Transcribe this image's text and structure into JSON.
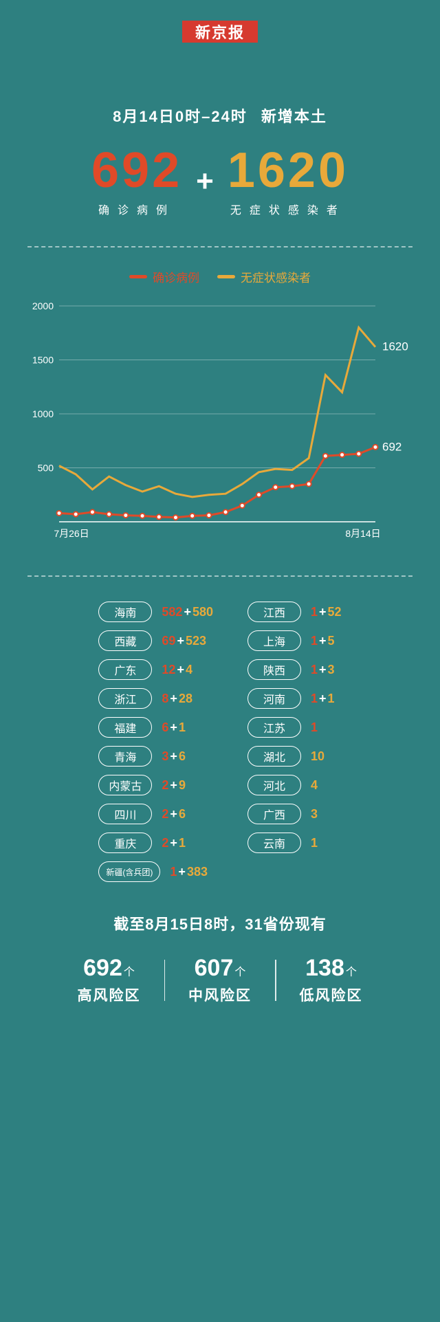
{
  "colors": {
    "background": "#2e8080",
    "red": "#e04a28",
    "yellow": "#e8a93a",
    "white": "#ffffff",
    "grid": "rgba(255,255,255,0.35)"
  },
  "logo": "新京报",
  "header": {
    "date_range": "8月14日0时–24时",
    "suffix": "新增本土"
  },
  "totals": {
    "confirmed": {
      "value": "692",
      "label": "确诊病例"
    },
    "asymptomatic": {
      "value": "1620",
      "label": "无症状感染者"
    },
    "plus": "+"
  },
  "legend": {
    "confirmed": "确诊病例",
    "asymptomatic": "无症状感染者"
  },
  "chart": {
    "type": "line",
    "ylim": [
      0,
      2000
    ],
    "yticks": [
      500,
      1000,
      1500,
      2000
    ],
    "x_start_label": "7月26日",
    "x_end_label": "8月14日",
    "n_points": 20,
    "series": {
      "confirmed": {
        "color": "#e04a28",
        "values": [
          80,
          70,
          90,
          70,
          60,
          55,
          45,
          40,
          55,
          60,
          90,
          150,
          250,
          320,
          330,
          350,
          610,
          620,
          630,
          692
        ],
        "end_label": "692",
        "markers": true
      },
      "asymptomatic": {
        "color": "#e8a93a",
        "values": [
          520,
          440,
          300,
          420,
          340,
          280,
          330,
          260,
          230,
          250,
          260,
          350,
          460,
          490,
          480,
          590,
          1360,
          1200,
          1800,
          1620
        ],
        "end_label": "1620",
        "markers": false
      }
    }
  },
  "provinces": {
    "left": [
      {
        "name": "海南",
        "confirmed": "582",
        "asymptomatic": "580"
      },
      {
        "name": "西藏",
        "confirmed": "69",
        "asymptomatic": "523"
      },
      {
        "name": "广东",
        "confirmed": "12",
        "asymptomatic": "4"
      },
      {
        "name": "浙江",
        "confirmed": "8",
        "asymptomatic": "28"
      },
      {
        "name": "福建",
        "confirmed": "6",
        "asymptomatic": "1"
      },
      {
        "name": "青海",
        "confirmed": "3",
        "asymptomatic": "6"
      },
      {
        "name": "内蒙古",
        "confirmed": "2",
        "asymptomatic": "9"
      },
      {
        "name": "四川",
        "confirmed": "2",
        "asymptomatic": "6"
      },
      {
        "name": "重庆",
        "confirmed": "2",
        "asymptomatic": "1"
      },
      {
        "name": "新疆(含兵团)",
        "confirmed": "1",
        "asymptomatic": "383",
        "small": true
      }
    ],
    "right": [
      {
        "name": "江西",
        "confirmed": "1",
        "asymptomatic": "52"
      },
      {
        "name": "上海",
        "confirmed": "1",
        "asymptomatic": "5"
      },
      {
        "name": "陕西",
        "confirmed": "1",
        "asymptomatic": "3"
      },
      {
        "name": "河南",
        "confirmed": "1",
        "asymptomatic": "1"
      },
      {
        "name": "江苏",
        "confirmed": "1",
        "asymptomatic": ""
      },
      {
        "name": "湖北",
        "confirmed": "",
        "asymptomatic": "10"
      },
      {
        "name": "河北",
        "confirmed": "",
        "asymptomatic": "4"
      },
      {
        "name": "广西",
        "confirmed": "",
        "asymptomatic": "3"
      },
      {
        "name": "云南",
        "confirmed": "",
        "asymptomatic": "1"
      }
    ]
  },
  "footer": {
    "title": "截至8月15日8时，31省份现有",
    "unit": "个",
    "high": {
      "value": "692",
      "label": "高风险区"
    },
    "medium": {
      "value": "607",
      "label": "中风险区"
    },
    "low": {
      "value": "138",
      "label": "低风险区"
    }
  }
}
